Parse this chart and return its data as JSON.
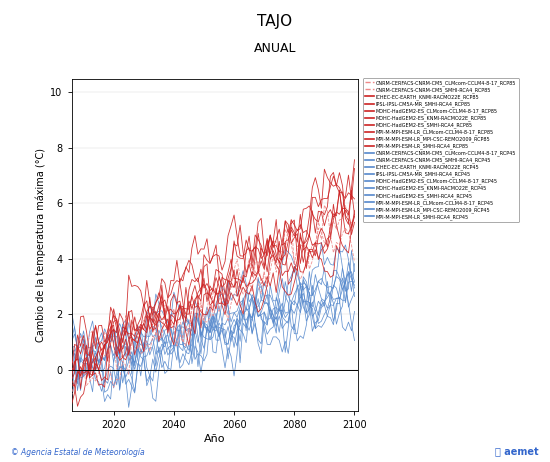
{
  "title": "TAJO",
  "subtitle": "ANUAL",
  "ylabel": "Cambio de la temperatura máxima (°C)",
  "xlabel": "Año",
  "ylim": [
    -1.5,
    10.5
  ],
  "yticks": [
    0,
    2,
    4,
    6,
    8,
    10
  ],
  "xlim": [
    2006,
    2101
  ],
  "xticks": [
    2020,
    2040,
    2060,
    2080,
    2100
  ],
  "rcp85_color": "#CC2222",
  "rcp85_dashed_color": "#EE8888",
  "rcp45_color": "#5588CC",
  "rcp45_light_color": "#88BBEE",
  "legend_entries_rcp85": [
    "CNRM-CERFACS-CNRM-CM5_CLMcom-CCLM4-8-17_RCP85",
    "CNRM-CERFACS-CNRM-CM5_SMHI-RCA4_RCP85",
    "ICHEC-EC-EARTH_KNMI-RACMO22E_RCP85",
    "IPSL-IPSL-CM5A-MR_SMHI-RCA4_RCP85",
    "MOHC-HadGEM2-ES_CLMcom-CCLM4-8-17_RCP85",
    "MOHC-HadGEM2-ES_KNMI-RACMO22E_RCP85",
    "MOHC-HadGEM2-ES_SMHI-RCA4_RCP85",
    "MPI-M-MPI-ESM-LR_CLMcom-CCLM4-8-17_RCP85",
    "MPI-M-MPI-ESM-LR_MPI-CSC-REMO2009_RCP85",
    "MPI-M-MPI-ESM-LR_SMHI-RCA4_RCP85"
  ],
  "legend_entries_rcp45": [
    "CNRM-CERFACS-CNRM-CM5_CLMcom-CCLM4-8-17_RCP45",
    "CNRM-CERFACS-CNRM-CM5_SMHI-RCA4_RCP45",
    "ICHEC-EC-EARTH_KNMI-RACMO22E_RCP45",
    "IPSL-IPSL-CM5A-MR_SMHI-RCA4_RCP45",
    "MOHC-HadGEM2-ES_CLMcom-CCLM4-8-17_RCP45",
    "MOHC-HadGEM2-ES_KNMI-RACMO22E_RCP45",
    "MOHC-HadGEM2-ES_SMHI-RCA4_RCP45",
    "MPI-M-MPI-ESM-LR_CLMcom-CCLM4-8-17_RCP45",
    "MPI-M-MPI-ESM-LR_MPI-CSC-REMO2009_RCP45",
    "MPI-M-MPI-ESM-LR_SMHI-RCA4_RCP45"
  ],
  "rcp85_end_values": [
    5.5,
    4.8,
    6.2,
    5.0,
    7.0,
    6.5,
    6.8,
    5.2,
    4.9,
    5.8
  ],
  "rcp45_end_values": [
    2.8,
    2.2,
    3.2,
    2.5,
    3.5,
    3.0,
    3.3,
    2.6,
    2.4,
    2.9
  ],
  "start_year": 2006,
  "end_year": 2100,
  "noise_scale": 0.65,
  "background_color": "#FFFFFF",
  "seed": 42
}
